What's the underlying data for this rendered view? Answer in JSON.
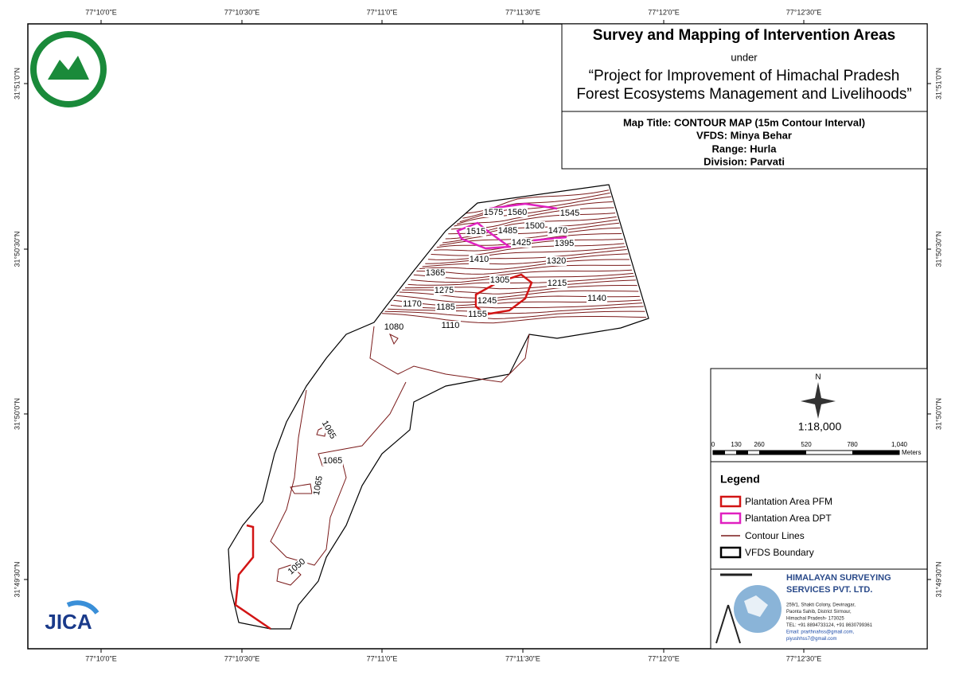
{
  "coords": {
    "top": [
      "77°10'0\"E",
      "77°10'30\"E",
      "77°11'0\"E",
      "77°11'30\"E",
      "77°12'0\"E",
      "77°12'30\"E"
    ],
    "bottom": [
      "77°10'0\"E",
      "77°10'30\"E",
      "77°11'0\"E",
      "77°11'30\"E",
      "77°12'0\"E",
      "77°12'30\"E"
    ],
    "left": [
      "31°51'0\"N",
      "31°50'30\"N",
      "31°50'0\"N",
      "31°49'30\"N"
    ],
    "right": [
      "31°51'0\"N",
      "31°50'30\"N",
      "31°50'0\"N",
      "31°49'30\"N"
    ]
  },
  "header": {
    "title": "Survey and Mapping of Intervention Areas",
    "under": "under",
    "project": [
      "“Project for Improvement of Himachal Pradesh",
      "Forest Ecosystems Management and Livelihoods”"
    ]
  },
  "info": {
    "map_title": "Map Title: CONTOUR MAP (15m Contour Interval)",
    "vfds": "VFDS: Minya Behar",
    "range": "Range: Hurla",
    "division": "Division: Parvati"
  },
  "scale": {
    "north": "N",
    "ratio": "1:18,000",
    "ticks": [
      "0",
      "130",
      "260",
      "520",
      "780",
      "1,040"
    ],
    "unit": "Meters"
  },
  "legend": {
    "title": "Legend",
    "items": [
      "Plantation Area PFM",
      "Plantation Area DPT",
      "Contour Lines",
      "VFDS Boundary"
    ]
  },
  "contour_labels": [
    1575,
    1560,
    1545,
    1515,
    1485,
    1500,
    1470,
    1425,
    1395,
    1410,
    1320,
    1365,
    1305,
    1275,
    1215,
    1245,
    1170,
    1185,
    1155,
    1140,
    1110,
    1080,
    1065,
    1065,
    1065,
    1050
  ],
  "logos": {
    "jica": "JICA"
  },
  "company": {
    "name": [
      "HIMALAYAN SURVEYING",
      "SERVICES PVT. LTD."
    ],
    "address": [
      "259/1, Shakti Colony, Devinagar,",
      "Paonta Sahib, District Sirmour,",
      "Himachal Pradesh- 173025",
      "TEL: +91 8894733124, +91 8630799361",
      "Email: prarthnahss@gmail.com,",
      "piyushhss7@gmail.com"
    ]
  }
}
